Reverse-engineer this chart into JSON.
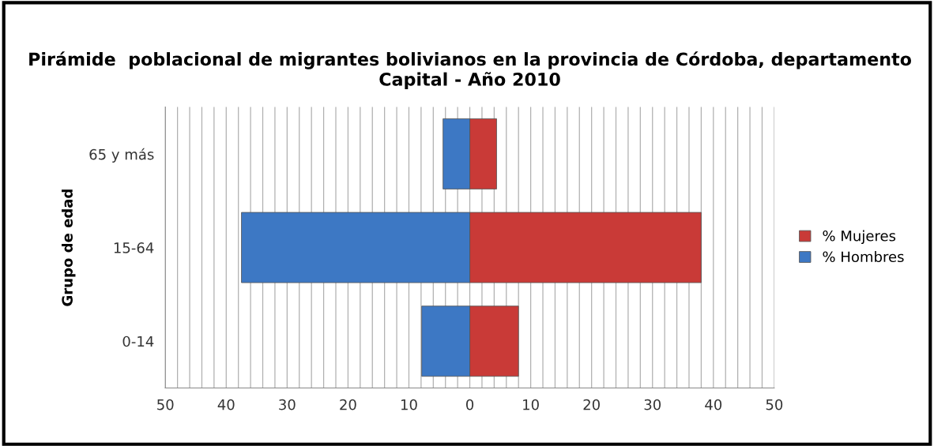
{
  "chart_data": {
    "type": "bar",
    "orientation": "horizontal",
    "stacked": true,
    "title": "Pirámide  poblacional de migrantes bolivianos en la provincia de Córdoba, departamento Capital - Año 2010",
    "ylabel": "Grupo de edad",
    "categories": [
      "65 y más",
      "15-64",
      "0-14"
    ],
    "series": [
      {
        "name": "% Mujeres",
        "color": "#c93a37",
        "values": [
          4.4,
          38.0,
          8.0
        ]
      },
      {
        "name": "% Hombres",
        "color": "#3d78c4",
        "values": [
          -4.4,
          -37.5,
          -7.9
        ]
      }
    ],
    "xlim": [
      -50,
      50
    ],
    "xticks": [
      {
        "value": -50,
        "label": "50"
      },
      {
        "value": -48,
        "label": null
      },
      {
        "value": -46,
        "label": null
      },
      {
        "value": -44,
        "label": null
      },
      {
        "value": -42,
        "label": null
      },
      {
        "value": -40,
        "label": "40"
      },
      {
        "value": -38,
        "label": null
      },
      {
        "value": -36,
        "label": null
      },
      {
        "value": -34,
        "label": null
      },
      {
        "value": -32,
        "label": null
      },
      {
        "value": -30,
        "label": "30"
      },
      {
        "value": -28,
        "label": null
      },
      {
        "value": -26,
        "label": null
      },
      {
        "value": -24,
        "label": null
      },
      {
        "value": -22,
        "label": null
      },
      {
        "value": -20,
        "label": "20"
      },
      {
        "value": -18,
        "label": null
      },
      {
        "value": -16,
        "label": null
      },
      {
        "value": -14,
        "label": null
      },
      {
        "value": -12,
        "label": null
      },
      {
        "value": -10,
        "label": "10"
      },
      {
        "value": -8,
        "label": null
      },
      {
        "value": -6,
        "label": null
      },
      {
        "value": -4,
        "label": null
      },
      {
        "value": -2,
        "label": null
      },
      0,
      {
        "value": 2,
        "label": null
      },
      {
        "value": 4,
        "label": null
      },
      {
        "value": 6,
        "label": null
      },
      {
        "value": 8,
        "label": null
      },
      10,
      {
        "value": 12,
        "label": null
      },
      {
        "value": 14,
        "label": null
      },
      {
        "value": 16,
        "label": null
      },
      {
        "value": 18,
        "label": null
      },
      20,
      {
        "value": 22,
        "label": null
      },
      {
        "value": 24,
        "label": null
      },
      {
        "value": 26,
        "label": null
      },
      {
        "value": 28,
        "label": null
      },
      30,
      {
        "value": 32,
        "label": null
      },
      {
        "value": 34,
        "label": null
      },
      {
        "value": 36,
        "label": null
      },
      {
        "value": 38,
        "label": null
      },
      40,
      {
        "value": 42,
        "label": null
      },
      {
        "value": 44,
        "label": null
      },
      {
        "value": 46,
        "label": null
      },
      {
        "value": 48,
        "label": null
      },
      50
    ],
    "grid": "x",
    "legend": "right"
  }
}
